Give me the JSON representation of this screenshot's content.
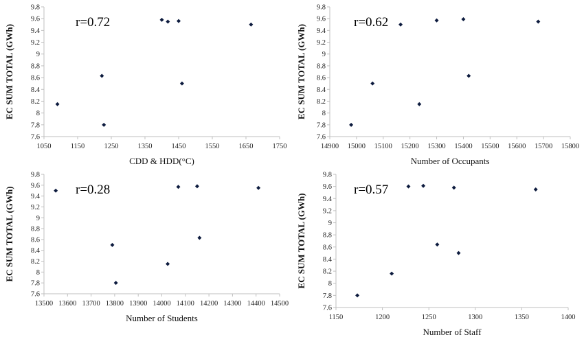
{
  "chart_data": [
    {
      "type": "scatter",
      "annotation": "r=0.72",
      "xlabel": "CDD & HDD(°C)",
      "ylabel": "EC SUM TOTAL (GWh)",
      "xlim": [
        1050,
        1750
      ],
      "ylim": [
        7.6,
        9.8
      ],
      "xticks": [
        "1050",
        "1150",
        "1250",
        "1350",
        "1450",
        "1550",
        "1650",
        "1750"
      ],
      "yticks": [
        "7.6",
        "7.8",
        "8",
        "8.2",
        "8.4",
        "8.6",
        "8.8",
        "9",
        "9.2",
        "9.4",
        "9.6",
        "9.8"
      ],
      "grid": false,
      "x": [
        1090,
        1222,
        1228,
        1400,
        1418,
        1450,
        1460,
        1665
      ],
      "y": [
        8.15,
        8.63,
        7.8,
        9.58,
        9.55,
        9.56,
        8.5,
        9.5
      ]
    },
    {
      "type": "scatter",
      "annotation": "r=0.62",
      "xlabel": "Number of Occupants",
      "ylabel": "EC SUM TOTAL (GWh)",
      "xlim": [
        14900,
        15800
      ],
      "ylim": [
        7.6,
        9.8
      ],
      "xticks": [
        "14900",
        "15000",
        "15100",
        "15200",
        "15300",
        "15400",
        "15500",
        "15600",
        "15700",
        "15800"
      ],
      "yticks": [
        "7.6",
        "7.8",
        "8",
        "8.2",
        "8.4",
        "8.6",
        "8.8",
        "9",
        "9.2",
        "9.4",
        "9.6",
        "9.8"
      ],
      "grid": false,
      "x": [
        14980,
        15060,
        15165,
        15235,
        15300,
        15400,
        15420,
        15680
      ],
      "y": [
        7.8,
        8.5,
        9.5,
        8.15,
        9.57,
        9.59,
        8.63,
        9.55
      ]
    },
    {
      "type": "scatter",
      "annotation": "r=0.28",
      "xlabel": "Number of Students",
      "ylabel": "EC SUM TOTAL (GWh)",
      "xlim": [
        13500,
        14500
      ],
      "ylim": [
        7.6,
        9.8
      ],
      "xticks": [
        "13500",
        "13600",
        "13700",
        "13800",
        "13900",
        "14000",
        "14100",
        "14200",
        "14300",
        "14400",
        "14500"
      ],
      "yticks": [
        "7.6",
        "7.8",
        "8",
        "8.2",
        "8.4",
        "8.6",
        "8.8",
        "9",
        "9.2",
        "9.4",
        "9.6",
        "9.8"
      ],
      "grid": false,
      "x": [
        13550,
        13790,
        13805,
        14025,
        14070,
        14150,
        14160,
        14410
      ],
      "y": [
        9.5,
        8.5,
        7.8,
        8.15,
        9.57,
        9.58,
        8.63,
        9.55
      ]
    },
    {
      "type": "scatter",
      "annotation": "r=0.57",
      "xlabel": "Number of Staff",
      "ylabel": "EC SUM TOTAL (GWh)",
      "xlim": [
        1150,
        1400
      ],
      "ylim": [
        7.6,
        9.8
      ],
      "xticks": [
        "1150",
        "1200",
        "1250",
        "1300",
        "1350",
        "1400"
      ],
      "yticks": [
        "7.6",
        "7.8",
        "8",
        "8.2",
        "8.4",
        "8.6",
        "8.8",
        "9",
        "9.2",
        "9.4",
        "9.6",
        "9.8"
      ],
      "grid": false,
      "x": [
        1173,
        1210,
        1228,
        1244,
        1259,
        1277,
        1282,
        1365
      ],
      "y": [
        7.8,
        8.16,
        9.6,
        9.61,
        8.64,
        9.58,
        8.5,
        9.55
      ]
    }
  ]
}
